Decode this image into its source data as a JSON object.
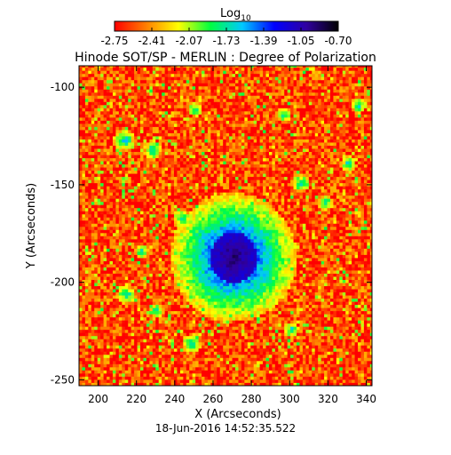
{
  "chart_data": {
    "type": "heatmap",
    "title": "Hinode SOT/SP - MERLIN : Degree of Polarization",
    "xlabel": "X (Arcseconds)",
    "ylabel": "Y (Arcseconds)",
    "xlim": [
      190,
      343
    ],
    "ylim": [
      -253,
      -89
    ],
    "x_ticks": [
      200,
      220,
      240,
      260,
      280,
      300,
      320,
      340
    ],
    "x_tick_labels": [
      "200",
      "220",
      "240",
      "260",
      "280",
      "300",
      "320",
      "340"
    ],
    "y_ticks": [
      -100,
      -150,
      -200,
      -250
    ],
    "y_tick_labels": [
      "-100",
      "-150",
      "-200",
      "-250"
    ],
    "colorbar": {
      "label_base": "Log",
      "label_sub": "10",
      "range": [
        -2.75,
        -0.7
      ],
      "tick_labels": [
        "-2.75",
        "-2.41",
        "-2.07",
        "-1.73",
        "-1.39",
        "-1.05",
        "-0.70"
      ],
      "colormap": [
        "#ff0000",
        "#ff8000",
        "#ffff00",
        "#00ff40",
        "#00c8ff",
        "#0000ff",
        "#3000a0",
        "#000000"
      ]
    },
    "features": {
      "sunspot_umbra_center": [
        270,
        -188
      ],
      "umbra_radius_x": 12,
      "umbra_radius_y": 13,
      "penumbra_radius": 22,
      "background_level": -2.6,
      "umbra_level": -0.9
    },
    "timestamp": "18-Jun-2016 14:52:35.522"
  }
}
